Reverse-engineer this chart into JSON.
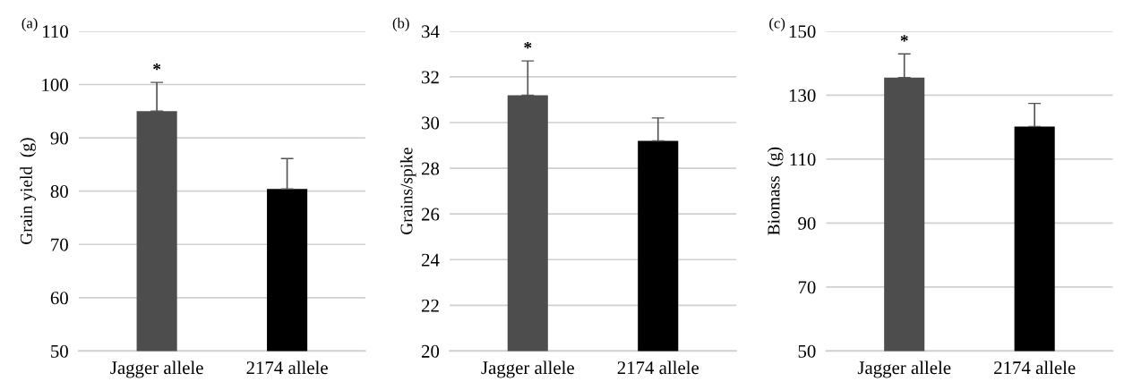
{
  "chart_data": [
    {
      "type": "bar",
      "title": "(a)",
      "ylabel": "Grain yield  (g)",
      "categories": [
        "Jagger allele",
        "2174 allele"
      ],
      "values": [
        95.0,
        80.4
      ],
      "colors": [
        "#4d4d4d",
        "#000000"
      ],
      "errors": [
        [
          95.0,
          100.4
        ],
        [
          80.4,
          86.1
        ]
      ],
      "ylim": [
        50,
        110
      ],
      "yticks": [
        50,
        60,
        70,
        80,
        90,
        100,
        110
      ],
      "grid": "y",
      "annotations": [
        {
          "text": "*",
          "x": "Jagger allele",
          "y": 100.4
        }
      ]
    },
    {
      "type": "bar",
      "title": "(b)",
      "ylabel": "Grains/spike",
      "categories": [
        "Jagger allele",
        "2174 allele"
      ],
      "values": [
        31.2,
        29.2
      ],
      "colors": [
        "#4d4d4d",
        "#000000"
      ],
      "errors": [
        [
          31.2,
          32.7
        ],
        [
          29.2,
          30.2
        ]
      ],
      "ylim": [
        20,
        34
      ],
      "yticks": [
        20,
        22,
        24,
        26,
        28,
        30,
        32,
        34
      ],
      "grid": "y",
      "annotations": [
        {
          "text": "*",
          "x": "Jagger allele",
          "y": 32.7
        }
      ]
    },
    {
      "type": "bar",
      "title": "(c)",
      "ylabel": "Biomass  (g)",
      "categories": [
        "Jagger allele",
        "2174 allele"
      ],
      "values": [
        135.5,
        120.2
      ],
      "colors": [
        "#4d4d4d",
        "#000000"
      ],
      "errors": [
        [
          135.5,
          142.9
        ],
        [
          120.2,
          127.4
        ]
      ],
      "ylim": [
        50,
        150
      ],
      "yticks": [
        50,
        70,
        90,
        110,
        130,
        150
      ],
      "grid": "y",
      "annotations": [
        {
          "text": "*",
          "x": "Jagger allele",
          "y": 142.9
        }
      ]
    }
  ]
}
